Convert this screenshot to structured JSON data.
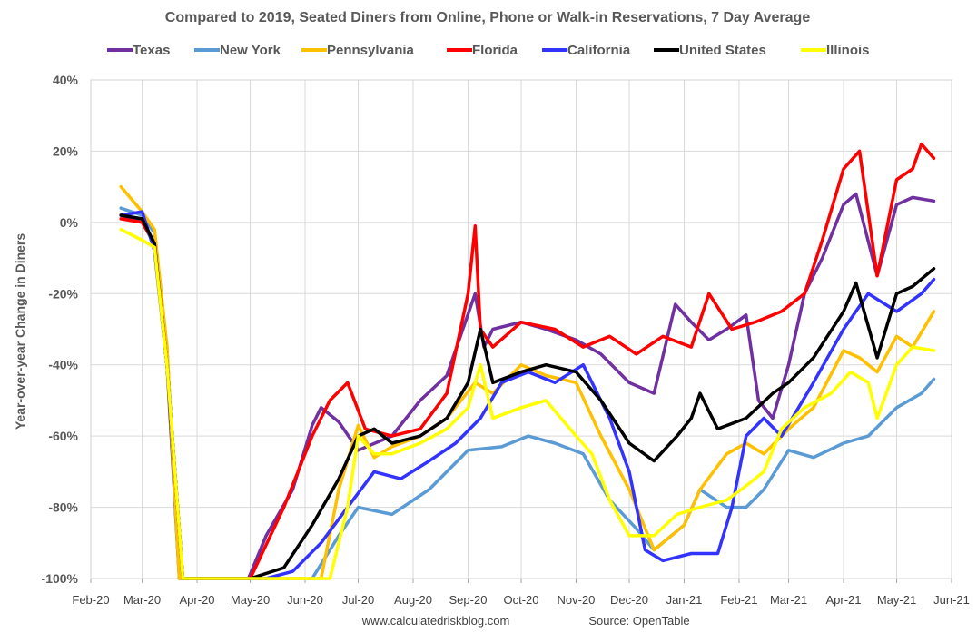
{
  "chart_data": {
    "type": "line",
    "title": "Compared to 2019, Seated Diners from Online, Phone or Walk-in Reservations, 7 Day Average",
    "ylabel": "Year-over-year Change in Diners",
    "xlabel": "",
    "ylim": [
      -100,
      40
    ],
    "yticks": [
      "40%",
      "20%",
      "0%",
      "-20%",
      "-40%",
      "-60%",
      "-80%",
      "-100%"
    ],
    "ytick_values": [
      40,
      20,
      0,
      -20,
      -40,
      -60,
      -80,
      -100
    ],
    "xticks": [
      "Feb-20",
      "Mar-20",
      "Apr-20",
      "May-20",
      "Jun-20",
      "Jul-20",
      "Aug-20",
      "Sep-20",
      "Oct-20",
      "Nov-20",
      "Dec-20",
      "Jan-21",
      "Feb-21",
      "Mar-21",
      "Apr-21",
      "May-21",
      "Jun-21"
    ],
    "xtick_dates": [
      "2020-02-01",
      "2020-03-01",
      "2020-04-01",
      "2020-05-01",
      "2020-06-01",
      "2020-07-01",
      "2020-08-01",
      "2020-09-01",
      "2020-10-01",
      "2020-11-01",
      "2020-12-01",
      "2021-01-01",
      "2021-02-01",
      "2021-03-01",
      "2021-04-01",
      "2021-05-01",
      "2021-06-01"
    ],
    "grid": true,
    "legend_position": "top",
    "footer_left": "www.calculatedriskblog.com",
    "footer_right": "Source: OpenTable",
    "series": [
      {
        "name": "Texas",
        "color": "#7030A0",
        "x": [
          "2020-02-18",
          "2020-03-01",
          "2020-03-08",
          "2020-03-15",
          "2020-03-22",
          "2020-04-01",
          "2020-04-30",
          "2020-05-10",
          "2020-05-25",
          "2020-06-05",
          "2020-06-10",
          "2020-06-20",
          "2020-07-01",
          "2020-07-20",
          "2020-08-05",
          "2020-08-20",
          "2020-09-05",
          "2020-09-10",
          "2020-09-15",
          "2020-10-01",
          "2020-10-15",
          "2020-11-01",
          "2020-11-15",
          "2020-12-01",
          "2020-12-15",
          "2020-12-27",
          "2021-01-05",
          "2021-01-15",
          "2021-01-25",
          "2021-02-05",
          "2021-02-12",
          "2021-02-20",
          "2021-03-01",
          "2021-03-10",
          "2021-03-20",
          "2021-04-01",
          "2021-04-08",
          "2021-04-20",
          "2021-05-01",
          "2021-05-10",
          "2021-05-22"
        ],
        "y": [
          2,
          0,
          -6,
          -40,
          -100,
          -100,
          -100,
          -88,
          -75,
          -57,
          -52,
          -56,
          -64,
          -60,
          -50,
          -43,
          -20,
          -35,
          -30,
          -28,
          -30,
          -33,
          -37,
          -45,
          -48,
          -23,
          -28,
          -33,
          -30,
          -26,
          -50,
          -55,
          -40,
          -20,
          -10,
          5,
          8,
          -15,
          5,
          7,
          6
        ]
      },
      {
        "name": "New York",
        "color": "#5B9BD5",
        "x": [
          "2020-02-18",
          "2020-03-01",
          "2020-03-08",
          "2020-03-15",
          "2020-03-22",
          "2020-04-01",
          "2020-06-05",
          "2020-06-20",
          "2020-07-01",
          "2020-07-20",
          "2020-08-10",
          "2020-09-01",
          "2020-09-20",
          "2020-10-05",
          "2020-10-20",
          "2020-11-05",
          "2020-11-20",
          "2020-12-05",
          "2020-12-15",
          "2021-01-01",
          "2021-01-10",
          "2021-01-25",
          "2021-02-05",
          "2021-02-15",
          "2021-03-01",
          "2021-03-15",
          "2021-04-01",
          "2021-04-15",
          "2021-05-01",
          "2021-05-15",
          "2021-05-22"
        ],
        "y": [
          4,
          2,
          -3,
          -35,
          -100,
          -100,
          -100,
          -88,
          -80,
          -82,
          -75,
          -64,
          -63,
          -60,
          -62,
          -65,
          -78,
          -86,
          -92,
          -85,
          -75,
          -80,
          -80,
          -75,
          -64,
          -66,
          -62,
          -60,
          -52,
          -48,
          -44
        ]
      },
      {
        "name": "Pennsylvania",
        "color": "#FFC000",
        "x": [
          "2020-02-18",
          "2020-03-01",
          "2020-03-08",
          "2020-03-15",
          "2020-03-22",
          "2020-04-01",
          "2020-06-10",
          "2020-06-20",
          "2020-07-01",
          "2020-07-10",
          "2020-07-20",
          "2020-08-05",
          "2020-08-20",
          "2020-09-05",
          "2020-09-15",
          "2020-10-01",
          "2020-10-15",
          "2020-11-01",
          "2020-11-15",
          "2020-12-01",
          "2020-12-15",
          "2021-01-01",
          "2021-01-10",
          "2021-01-25",
          "2021-02-05",
          "2021-02-15",
          "2021-03-01",
          "2021-03-15",
          "2021-04-01",
          "2021-04-10",
          "2021-04-20",
          "2021-05-01",
          "2021-05-10",
          "2021-05-22"
        ],
        "y": [
          10,
          3,
          -2,
          -35,
          -100,
          -100,
          -100,
          -75,
          -57,
          -66,
          -63,
          -60,
          -55,
          -45,
          -48,
          -40,
          -43,
          -45,
          -60,
          -75,
          -92,
          -85,
          -75,
          -65,
          -62,
          -65,
          -58,
          -52,
          -36,
          -38,
          -42,
          -32,
          -35,
          -25
        ]
      },
      {
        "name": "Florida",
        "color": "#FF0000",
        "x": [
          "2020-02-18",
          "2020-03-01",
          "2020-03-08",
          "2020-03-15",
          "2020-03-24",
          "2020-04-03",
          "2020-05-01",
          "2020-05-20",
          "2020-06-05",
          "2020-06-15",
          "2020-06-25",
          "2020-07-05",
          "2020-07-20",
          "2020-08-05",
          "2020-08-20",
          "2020-09-01",
          "2020-09-05",
          "2020-09-08",
          "2020-09-15",
          "2020-10-01",
          "2020-10-20",
          "2020-11-05",
          "2020-11-20",
          "2020-12-05",
          "2020-12-20",
          "2021-01-05",
          "2021-01-15",
          "2021-01-28",
          "2021-02-10",
          "2021-02-25",
          "2021-03-10",
          "2021-03-20",
          "2021-04-01",
          "2021-04-10",
          "2021-04-20",
          "2021-05-01",
          "2021-05-10",
          "2021-05-15",
          "2021-05-22"
        ],
        "y": [
          1,
          0,
          -6,
          -40,
          -100,
          -100,
          -100,
          -80,
          -60,
          -50,
          -45,
          -58,
          -60,
          -58,
          -48,
          -20,
          -1,
          -30,
          -35,
          -28,
          -30,
          -35,
          -32,
          -37,
          -32,
          -35,
          -20,
          -30,
          -28,
          -25,
          -20,
          -5,
          15,
          20,
          -15,
          12,
          15,
          22,
          18
        ]
      },
      {
        "name": "California",
        "color": "#3333FF",
        "x": [
          "2020-02-18",
          "2020-03-01",
          "2020-03-08",
          "2020-03-15",
          "2020-03-24",
          "2020-04-03",
          "2020-05-10",
          "2020-05-25",
          "2020-06-10",
          "2020-06-25",
          "2020-07-10",
          "2020-07-25",
          "2020-08-10",
          "2020-08-25",
          "2020-09-08",
          "2020-09-20",
          "2020-10-05",
          "2020-10-20",
          "2020-11-05",
          "2020-11-20",
          "2020-12-01",
          "2020-12-10",
          "2020-12-20",
          "2021-01-05",
          "2021-01-20",
          "2021-01-28",
          "2021-02-05",
          "2021-02-15",
          "2021-02-25",
          "2021-03-15",
          "2021-04-01",
          "2021-04-15",
          "2021-05-01",
          "2021-05-15",
          "2021-05-22"
        ],
        "y": [
          2,
          3,
          -8,
          -40,
          -100,
          -100,
          -100,
          -98,
          -90,
          -80,
          -70,
          -72,
          -67,
          -62,
          -55,
          -45,
          -42,
          -45,
          -40,
          -55,
          -70,
          -92,
          -95,
          -93,
          -93,
          -80,
          -60,
          -55,
          -60,
          -45,
          -30,
          -20,
          -25,
          -20,
          -16
        ]
      },
      {
        "name": "United States",
        "color": "#000000",
        "x": [
          "2020-02-18",
          "2020-03-01",
          "2020-03-08",
          "2020-03-15",
          "2020-03-24",
          "2020-04-03",
          "2020-05-01",
          "2020-05-20",
          "2020-06-05",
          "2020-06-20",
          "2020-07-01",
          "2020-07-10",
          "2020-07-20",
          "2020-08-05",
          "2020-08-20",
          "2020-09-01",
          "2020-09-08",
          "2020-09-15",
          "2020-10-01",
          "2020-10-15",
          "2020-11-01",
          "2020-11-15",
          "2020-12-01",
          "2020-12-15",
          "2020-12-28",
          "2021-01-05",
          "2021-01-10",
          "2021-01-20",
          "2021-02-05",
          "2021-02-20",
          "2021-03-01",
          "2021-03-15",
          "2021-04-01",
          "2021-04-08",
          "2021-04-20",
          "2021-05-01",
          "2021-05-10",
          "2021-05-22"
        ],
        "y": [
          2,
          1,
          -6,
          -40,
          -100,
          -100,
          -100,
          -97,
          -85,
          -72,
          -60,
          -58,
          -62,
          -60,
          -55,
          -45,
          -30,
          -45,
          -42,
          -40,
          -42,
          -50,
          -62,
          -67,
          -60,
          -55,
          -48,
          -58,
          -55,
          -48,
          -45,
          -38,
          -25,
          -17,
          -38,
          -20,
          -18,
          -13
        ]
      },
      {
        "name": "Illinois",
        "color": "#FFFF00",
        "x": [
          "2020-02-18",
          "2020-03-01",
          "2020-03-08",
          "2020-03-15",
          "2020-03-24",
          "2020-04-03",
          "2020-06-15",
          "2020-06-25",
          "2020-07-01",
          "2020-07-10",
          "2020-07-20",
          "2020-08-05",
          "2020-08-20",
          "2020-09-01",
          "2020-09-08",
          "2020-09-15",
          "2020-10-01",
          "2020-10-15",
          "2020-11-01",
          "2020-11-10",
          "2020-11-20",
          "2020-12-01",
          "2020-12-15",
          "2020-12-28",
          "2021-01-10",
          "2021-01-25",
          "2021-02-05",
          "2021-02-15",
          "2021-02-25",
          "2021-03-10",
          "2021-03-25",
          "2021-04-05",
          "2021-04-15",
          "2021-04-20",
          "2021-05-01",
          "2021-05-10",
          "2021-05-22"
        ],
        "y": [
          -2,
          -5,
          -7,
          -40,
          -100,
          -100,
          -100,
          -80,
          -60,
          -65,
          -65,
          -62,
          -58,
          -52,
          -40,
          -55,
          -52,
          -50,
          -60,
          -65,
          -78,
          -88,
          -88,
          -82,
          -80,
          -78,
          -74,
          -70,
          -58,
          -52,
          -48,
          -42,
          -45,
          -55,
          -40,
          -35,
          -36
        ]
      }
    ]
  }
}
